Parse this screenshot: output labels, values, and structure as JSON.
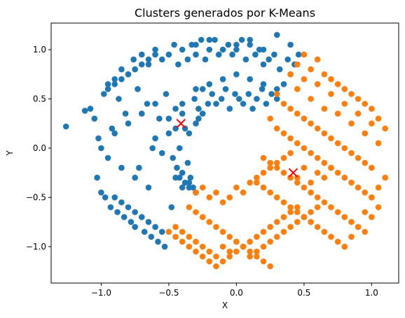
{
  "chart_data": {
    "type": "scatter",
    "title": "Clusters generados por K-Means",
    "xlabel": "X",
    "ylabel": "Y",
    "xlim": [
      -1.37,
      1.2
    ],
    "ylim": [
      -1.37,
      1.27
    ],
    "xticks": [
      -1.0,
      -0.5,
      0.0,
      0.5,
      1.0
    ],
    "xtick_labels": [
      "−1.0",
      "−0.5",
      "0.0",
      "0.5",
      "1.0"
    ],
    "yticks": [
      -1.0,
      -0.5,
      0.0,
      0.5,
      1.0
    ],
    "ytick_labels": [
      "−1.0",
      "−0.5",
      "0.0",
      "0.5",
      "1.0"
    ],
    "grid": false,
    "legend": "none",
    "series": [
      {
        "color": "#1f77b4",
        "x": [
          -1.26,
          -1.12,
          -1.08,
          -1.05,
          -1.03,
          -1.02,
          -1.0,
          -0.98,
          -0.97,
          -0.95,
          -0.93,
          -0.92,
          -0.9,
          -0.88,
          -0.87,
          -0.85,
          -0.83,
          -0.82,
          -0.8,
          -0.78,
          -0.76,
          -0.75,
          -0.73,
          -0.72,
          -0.7,
          -0.68,
          -0.66,
          -0.65,
          -0.63,
          -0.62,
          -0.6,
          -0.58,
          -0.57,
          -0.55,
          -0.53,
          -0.52,
          -0.5,
          -0.48,
          -0.46,
          -0.45,
          -0.43,
          -0.42,
          -0.4,
          -0.38,
          -0.36,
          -0.35,
          -0.33,
          -0.31,
          -0.3,
          -0.28,
          -0.26,
          -0.25,
          -0.23,
          -0.21,
          -0.2,
          -0.18,
          -0.16,
          -0.15,
          -0.13,
          -0.11,
          -0.1,
          -0.08,
          -0.06,
          -0.05,
          -0.03,
          -0.01,
          0.0,
          0.02,
          0.04,
          0.05,
          0.07,
          0.09,
          0.1,
          0.12,
          0.14,
          0.15,
          0.17,
          0.19,
          0.2,
          0.22,
          0.24,
          0.26,
          0.28,
          0.3,
          0.32,
          0.35,
          0.38,
          0.4,
          0.43,
          0.46,
          -0.6,
          -0.55,
          -0.5,
          -0.47,
          -0.44,
          -0.42,
          -0.4,
          -0.38,
          -0.36,
          -0.34,
          -0.32,
          -0.3,
          -0.5,
          -0.45,
          -0.4,
          -0.35,
          -0.3,
          -0.28,
          -0.25,
          -0.45,
          -0.4,
          -0.35,
          -0.3,
          -0.9,
          -0.85,
          -0.8,
          -0.75,
          -0.7,
          -0.65,
          -0.6,
          -0.55,
          -0.95,
          -0.9,
          -0.85,
          -0.8,
          -0.75,
          -0.7,
          -0.65,
          -0.6,
          -1.0,
          -0.95,
          -0.9,
          -0.85,
          -0.8,
          -0.75,
          -0.7,
          -0.65,
          -0.6,
          -0.4,
          -0.3,
          -0.2,
          -0.1,
          0.0,
          0.1,
          0.2,
          0.3,
          -0.3,
          -0.2,
          -0.1,
          0.0,
          0.1,
          0.2,
          0.3,
          0.4
        ],
        "y": [
          0.22,
          0.38,
          0.4,
          0.3,
          -0.3,
          0.1,
          -0.45,
          0.55,
          -0.5,
          0.65,
          -0.6,
          0.2,
          0.7,
          -0.65,
          0.5,
          0.8,
          -0.7,
          0.35,
          0.75,
          -0.75,
          0.9,
          -0.8,
          0.6,
          -0.2,
          0.95,
          -0.85,
          0.45,
          0.85,
          -0.9,
          0.0,
          1.0,
          -0.95,
          0.3,
          0.9,
          -1.0,
          0.55,
          0.95,
          -0.6,
          1.05,
          0.4,
          0.85,
          -0.3,
          1.0,
          0.2,
          0.9,
          -0.4,
          1.05,
          0.5,
          0.95,
          0.3,
          1.1,
          0.6,
          0.9,
          0.45,
          1.0,
          0.55,
          1.1,
          0.45,
          0.95,
          0.5,
          1.0,
          0.6,
          1.05,
          0.4,
          0.95,
          0.55,
          1.0,
          0.5,
          1.1,
          0.45,
          0.9,
          0.55,
          1.05,
          0.4,
          0.95,
          0.5,
          1.0,
          0.6,
          0.85,
          0.45,
          0.9,
          0.55,
          0.95,
          0.5,
          0.8,
          0.65,
          0.9,
          0.75,
          0.85,
          0.95,
          0.1,
          -0.05,
          0.15,
          -0.1,
          -0.2,
          0.0,
          -0.25,
          -0.35,
          -0.15,
          -0.3,
          -0.4,
          -0.45,
          0.3,
          0.2,
          0.35,
          0.15,
          0.25,
          0.4,
          0.35,
          -0.3,
          -0.4,
          -0.35,
          -0.45,
          -0.5,
          -0.55,
          -0.6,
          -0.65,
          -0.7,
          -0.75,
          -0.8,
          -0.85,
          0.6,
          0.65,
          0.7,
          0.75,
          0.8,
          0.85,
          0.9,
          0.95,
          0.0,
          -0.1,
          0.15,
          -0.2,
          0.25,
          -0.3,
          0.35,
          -0.4,
          0.45,
          0.45,
          0.6,
          0.65,
          0.7,
          0.75,
          0.7,
          0.65,
          0.6,
          1.05,
          1.1,
          1.0,
          1.05,
          1.1,
          1.0,
          1.15,
          1.05
        ]
      },
      {
        "color": "#ff7f0e",
        "x": [
          0.45,
          0.5,
          0.55,
          0.6,
          0.65,
          0.7,
          0.75,
          0.8,
          0.85,
          0.9,
          0.95,
          1.0,
          1.05,
          1.1,
          0.4,
          0.45,
          0.5,
          0.55,
          0.6,
          0.65,
          0.7,
          0.75,
          0.8,
          0.85,
          0.9,
          0.95,
          1.0,
          1.05,
          0.3,
          0.35,
          0.4,
          0.45,
          0.5,
          0.55,
          0.6,
          0.65,
          0.7,
          0.75,
          0.8,
          0.85,
          0.9,
          0.95,
          1.0,
          0.25,
          0.3,
          0.35,
          0.4,
          0.45,
          0.5,
          0.55,
          0.6,
          0.65,
          0.7,
          0.75,
          0.8,
          0.85,
          0.9,
          0.95,
          1.0,
          1.05,
          1.1,
          0.2,
          0.25,
          0.3,
          0.35,
          0.4,
          0.45,
          0.5,
          0.55,
          0.6,
          0.65,
          0.7,
          0.75,
          0.8,
          0.85,
          0.9,
          0.95,
          1.0,
          1.05,
          0.15,
          0.2,
          0.25,
          0.3,
          0.35,
          0.4,
          0.45,
          0.5,
          0.55,
          0.6,
          0.65,
          0.7,
          0.75,
          0.8,
          0.85,
          0.9,
          0.95,
          1.0,
          -0.3,
          -0.25,
          -0.2,
          -0.15,
          -0.1,
          -0.05,
          0.0,
          0.05,
          0.1,
          0.15,
          0.2,
          0.25,
          0.3,
          0.35,
          0.4,
          0.45,
          0.5,
          0.55,
          0.6,
          0.65,
          0.7,
          -0.45,
          -0.4,
          -0.35,
          -0.3,
          -0.25,
          -0.2,
          -0.15,
          -0.1,
          -0.05,
          0.0,
          0.05,
          0.1,
          0.15,
          0.2,
          0.25,
          0.3,
          0.35,
          0.4,
          0.45,
          0.5,
          0.55,
          0.6,
          -0.5,
          -0.45,
          -0.4,
          -0.35,
          -0.3,
          -0.25,
          -0.2,
          -0.15,
          -0.1,
          -0.05,
          0.0,
          0.05,
          0.1,
          0.15,
          0.2,
          0.25,
          0.3,
          0.35,
          0.4,
          0.45,
          -0.35,
          -0.3,
          -0.25,
          -0.2,
          -0.15,
          -0.1,
          -0.05,
          0.0,
          0.05,
          0.1,
          0.15,
          0.2,
          0.25
        ],
        "y": [
          0.85,
          0.95,
          0.8,
          0.9,
          0.75,
          0.7,
          0.65,
          0.6,
          0.55,
          0.5,
          0.45,
          0.4,
          0.3,
          0.2,
          0.75,
          0.6,
          0.7,
          0.5,
          0.65,
          0.4,
          0.55,
          0.35,
          0.45,
          0.25,
          0.35,
          0.15,
          0.25,
          0.05,
          0.55,
          0.45,
          0.4,
          0.35,
          0.3,
          0.25,
          0.2,
          0.15,
          0.1,
          0.05,
          0.0,
          -0.05,
          -0.1,
          -0.15,
          -0.2,
          0.3,
          0.2,
          0.15,
          0.1,
          0.05,
          0.0,
          -0.05,
          -0.1,
          -0.15,
          -0.2,
          -0.25,
          -0.3,
          -0.35,
          -0.4,
          -0.45,
          -0.5,
          -0.4,
          -0.3,
          -0.1,
          -0.15,
          -0.2,
          -0.25,
          -0.3,
          -0.35,
          -0.4,
          -0.45,
          -0.5,
          -0.55,
          -0.6,
          -0.65,
          -0.7,
          -0.75,
          -0.8,
          -0.85,
          -0.7,
          -0.6,
          -0.35,
          -0.4,
          -0.45,
          -0.5,
          -0.55,
          -0.6,
          -0.65,
          -0.7,
          -0.75,
          -0.8,
          -0.85,
          -0.9,
          -0.95,
          -1.0,
          -0.9,
          -0.8,
          -0.65,
          -0.5,
          -0.45,
          -0.4,
          -0.5,
          -0.45,
          -0.55,
          -0.5,
          -0.4,
          -0.45,
          -0.35,
          -0.3,
          -0.25,
          -0.2,
          -0.15,
          -0.1,
          -0.05,
          -0.3,
          -0.2,
          -0.35,
          -0.25,
          -0.3,
          -0.2,
          -0.8,
          -0.85,
          -0.9,
          -0.95,
          -1.0,
          -1.05,
          -1.1,
          -1.0,
          -1.05,
          -0.95,
          -1.0,
          -1.1,
          -1.05,
          -1.0,
          -0.95,
          -0.9,
          -0.85,
          -0.8,
          -0.75,
          -0.7,
          -0.65,
          -0.6,
          -0.85,
          -0.9,
          -0.95,
          -1.0,
          -1.05,
          -1.1,
          -1.15,
          -1.2,
          -1.15,
          -1.1,
          -1.05,
          -1.0,
          -0.95,
          -0.9,
          -0.85,
          -0.8,
          -0.75,
          -0.7,
          -0.65,
          -0.6,
          -0.6,
          -0.65,
          -0.7,
          -0.75,
          -0.8,
          -0.85,
          -0.9,
          -0.95,
          -1.0,
          -1.05,
          -1.1,
          -1.15,
          -1.2
        ]
      }
    ],
    "centroids": {
      "color": "#ff0000",
      "marker": "x",
      "x": [
        -0.41,
        0.42
      ],
      "y": [
        0.25,
        -0.25
      ]
    }
  }
}
